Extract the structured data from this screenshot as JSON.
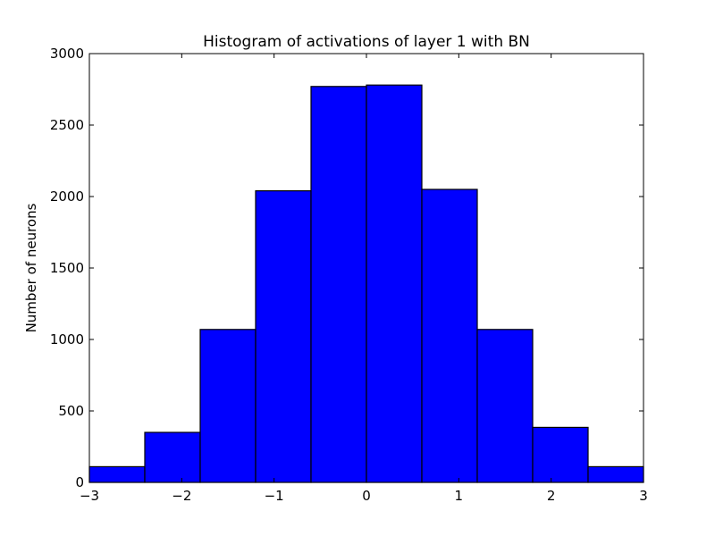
{
  "chart_data": {
    "type": "bar",
    "title": "Histogram of activations of layer 1  with BN",
    "xlabel": "",
    "ylabel": "Number of neurons",
    "xlim": [
      -3,
      3
    ],
    "ylim": [
      0,
      3000
    ],
    "xticks": [
      -3,
      -2,
      -1,
      0,
      1,
      2,
      3
    ],
    "xtick_labels": [
      "−3",
      "−2",
      "−1",
      "0",
      "1",
      "2",
      "3"
    ],
    "yticks": [
      0,
      500,
      1000,
      1500,
      2000,
      2500,
      3000
    ],
    "ytick_labels": [
      "0",
      "500",
      "1000",
      "1500",
      "2000",
      "2500",
      "3000"
    ],
    "bin_edges": [
      -3,
      -2.4,
      -1.8,
      -1.2,
      -0.6,
      0,
      0.6,
      1.2,
      1.8,
      2.4,
      3
    ],
    "values": [
      110,
      350,
      1070,
      2040,
      2770,
      2780,
      2050,
      1070,
      385,
      110
    ],
    "bar_color": "#0000ff",
    "edge_color": "#000000",
    "grid": false
  }
}
